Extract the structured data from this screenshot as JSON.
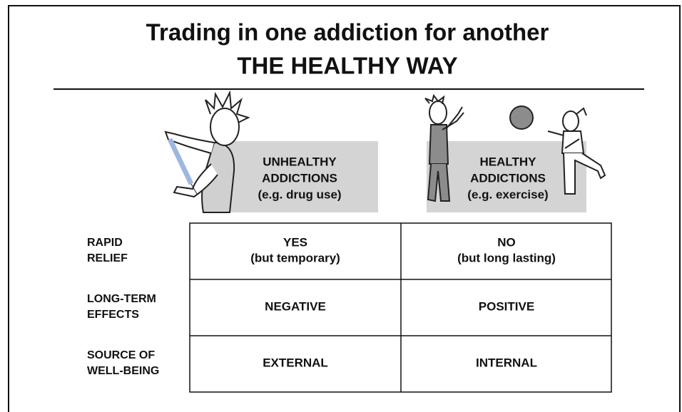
{
  "header": {
    "title": "Trading in one addiction for another",
    "subtitle": "THE HEALTHY WAY"
  },
  "columns": [
    {
      "lines": [
        "UNHEALTHY",
        "ADDICTIONS",
        "(e.g. drug use)"
      ]
    },
    {
      "lines": [
        "HEALTHY",
        "ADDICTIONS",
        "(e.g. exercise)"
      ]
    }
  ],
  "rows": [
    {
      "label": [
        "RAPID",
        "RELIEF"
      ],
      "cells": [
        [
          "YES",
          "(but temporary)"
        ],
        [
          "NO",
          "(but long lasting)"
        ]
      ]
    },
    {
      "label": [
        "LONG-TERM",
        "EFFECTS"
      ],
      "cells": [
        [
          "NEGATIVE"
        ],
        [
          "POSITIVE"
        ]
      ]
    },
    {
      "label": [
        "SOURCE OF",
        "WELL-BEING"
      ],
      "cells": [
        [
          "EXTERNAL"
        ],
        [
          "INTERNAL"
        ]
      ]
    }
  ]
}
